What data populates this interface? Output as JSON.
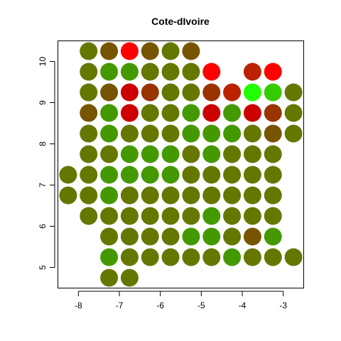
{
  "chart_data": {
    "type": "scatter",
    "title": "Cote-dIvoire",
    "xlabel": "",
    "ylabel": "",
    "xlim": [
      -8.5,
      -2.5
    ],
    "ylim": [
      4.5,
      10.5
    ],
    "x_ticks": [
      -8,
      -7,
      -6,
      -5,
      -4,
      -3
    ],
    "y_ticks": [
      5,
      6,
      7,
      8,
      9,
      10
    ],
    "x_tick_labels": [
      "-8",
      "-7",
      "-6",
      "-5",
      "-4",
      "-3"
    ],
    "y_tick_labels": [
      "5",
      "6",
      "7",
      "8",
      "9",
      "10"
    ],
    "grid": false,
    "legend": "none",
    "marker": "filled-circle",
    "palette": {
      "olive": "#667700",
      "green": "#449900",
      "brown": "#775500",
      "rust": "#993300",
      "darkred": "#BB2200",
      "crimson": "#CC0000",
      "red": "#FF0000",
      "lime": "#22FF00",
      "brightgreen": "#33CC00"
    },
    "points": [
      {
        "x": -7.75,
        "y": 10.25,
        "color": "olive"
      },
      {
        "x": -7.25,
        "y": 10.25,
        "color": "brown"
      },
      {
        "x": -6.75,
        "y": 10.25,
        "color": "red"
      },
      {
        "x": -6.25,
        "y": 10.25,
        "color": "brown"
      },
      {
        "x": -5.75,
        "y": 10.25,
        "color": "olive"
      },
      {
        "x": -5.25,
        "y": 10.25,
        "color": "brown"
      },
      {
        "x": -7.75,
        "y": 9.75,
        "color": "olive"
      },
      {
        "x": -7.25,
        "y": 9.75,
        "color": "green"
      },
      {
        "x": -6.75,
        "y": 9.75,
        "color": "green"
      },
      {
        "x": -6.25,
        "y": 9.75,
        "color": "olive"
      },
      {
        "x": -5.75,
        "y": 9.75,
        "color": "olive"
      },
      {
        "x": -5.25,
        "y": 9.75,
        "color": "olive"
      },
      {
        "x": -4.75,
        "y": 9.75,
        "color": "red"
      },
      {
        "x": -3.75,
        "y": 9.75,
        "color": "darkred"
      },
      {
        "x": -3.25,
        "y": 9.75,
        "color": "red"
      },
      {
        "x": -7.75,
        "y": 9.25,
        "color": "olive"
      },
      {
        "x": -7.25,
        "y": 9.25,
        "color": "brown"
      },
      {
        "x": -6.75,
        "y": 9.25,
        "color": "crimson"
      },
      {
        "x": -6.25,
        "y": 9.25,
        "color": "rust"
      },
      {
        "x": -5.75,
        "y": 9.25,
        "color": "olive"
      },
      {
        "x": -5.25,
        "y": 9.25,
        "color": "olive"
      },
      {
        "x": -4.75,
        "y": 9.25,
        "color": "rust"
      },
      {
        "x": -4.25,
        "y": 9.25,
        "color": "darkred"
      },
      {
        "x": -3.75,
        "y": 9.25,
        "color": "lime"
      },
      {
        "x": -3.25,
        "y": 9.25,
        "color": "brightgreen"
      },
      {
        "x": -2.75,
        "y": 9.25,
        "color": "olive"
      },
      {
        "x": -7.75,
        "y": 8.75,
        "color": "brown"
      },
      {
        "x": -7.25,
        "y": 8.75,
        "color": "green"
      },
      {
        "x": -6.75,
        "y": 8.75,
        "color": "crimson"
      },
      {
        "x": -6.25,
        "y": 8.75,
        "color": "olive"
      },
      {
        "x": -5.75,
        "y": 8.75,
        "color": "olive"
      },
      {
        "x": -5.25,
        "y": 8.75,
        "color": "green"
      },
      {
        "x": -4.75,
        "y": 8.75,
        "color": "crimson"
      },
      {
        "x": -4.25,
        "y": 8.75,
        "color": "green"
      },
      {
        "x": -3.75,
        "y": 8.75,
        "color": "crimson"
      },
      {
        "x": -3.25,
        "y": 8.75,
        "color": "rust"
      },
      {
        "x": -2.75,
        "y": 8.75,
        "color": "olive"
      },
      {
        "x": -7.75,
        "y": 8.25,
        "color": "olive"
      },
      {
        "x": -7.25,
        "y": 8.25,
        "color": "green"
      },
      {
        "x": -6.75,
        "y": 8.25,
        "color": "olive"
      },
      {
        "x": -6.25,
        "y": 8.25,
        "color": "olive"
      },
      {
        "x": -5.75,
        "y": 8.25,
        "color": "olive"
      },
      {
        "x": -5.25,
        "y": 8.25,
        "color": "green"
      },
      {
        "x": -4.75,
        "y": 8.25,
        "color": "green"
      },
      {
        "x": -4.25,
        "y": 8.25,
        "color": "green"
      },
      {
        "x": -3.75,
        "y": 8.25,
        "color": "olive"
      },
      {
        "x": -3.25,
        "y": 8.25,
        "color": "brown"
      },
      {
        "x": -2.75,
        "y": 8.25,
        "color": "olive"
      },
      {
        "x": -7.75,
        "y": 7.75,
        "color": "olive"
      },
      {
        "x": -7.25,
        "y": 7.75,
        "color": "olive"
      },
      {
        "x": -6.75,
        "y": 7.75,
        "color": "green"
      },
      {
        "x": -6.25,
        "y": 7.75,
        "color": "green"
      },
      {
        "x": -5.75,
        "y": 7.75,
        "color": "green"
      },
      {
        "x": -5.25,
        "y": 7.75,
        "color": "olive"
      },
      {
        "x": -4.75,
        "y": 7.75,
        "color": "green"
      },
      {
        "x": -4.25,
        "y": 7.75,
        "color": "olive"
      },
      {
        "x": -3.75,
        "y": 7.75,
        "color": "olive"
      },
      {
        "x": -3.25,
        "y": 7.75,
        "color": "olive"
      },
      {
        "x": -8.25,
        "y": 7.25,
        "color": "olive"
      },
      {
        "x": -7.75,
        "y": 7.25,
        "color": "olive"
      },
      {
        "x": -7.25,
        "y": 7.25,
        "color": "green"
      },
      {
        "x": -6.75,
        "y": 7.25,
        "color": "green"
      },
      {
        "x": -6.25,
        "y": 7.25,
        "color": "green"
      },
      {
        "x": -5.75,
        "y": 7.25,
        "color": "green"
      },
      {
        "x": -5.25,
        "y": 7.25,
        "color": "olive"
      },
      {
        "x": -4.75,
        "y": 7.25,
        "color": "olive"
      },
      {
        "x": -4.25,
        "y": 7.25,
        "color": "olive"
      },
      {
        "x": -3.75,
        "y": 7.25,
        "color": "olive"
      },
      {
        "x": -3.25,
        "y": 7.25,
        "color": "olive"
      },
      {
        "x": -8.25,
        "y": 6.75,
        "color": "olive"
      },
      {
        "x": -7.75,
        "y": 6.75,
        "color": "olive"
      },
      {
        "x": -7.25,
        "y": 6.75,
        "color": "green"
      },
      {
        "x": -6.75,
        "y": 6.75,
        "color": "olive"
      },
      {
        "x": -6.25,
        "y": 6.75,
        "color": "olive"
      },
      {
        "x": -5.75,
        "y": 6.75,
        "color": "olive"
      },
      {
        "x": -5.25,
        "y": 6.75,
        "color": "olive"
      },
      {
        "x": -4.75,
        "y": 6.75,
        "color": "olive"
      },
      {
        "x": -4.25,
        "y": 6.75,
        "color": "olive"
      },
      {
        "x": -3.75,
        "y": 6.75,
        "color": "olive"
      },
      {
        "x": -3.25,
        "y": 6.75,
        "color": "olive"
      },
      {
        "x": -7.75,
        "y": 6.25,
        "color": "olive"
      },
      {
        "x": -7.25,
        "y": 6.25,
        "color": "olive"
      },
      {
        "x": -6.75,
        "y": 6.25,
        "color": "olive"
      },
      {
        "x": -6.25,
        "y": 6.25,
        "color": "olive"
      },
      {
        "x": -5.75,
        "y": 6.25,
        "color": "olive"
      },
      {
        "x": -5.25,
        "y": 6.25,
        "color": "olive"
      },
      {
        "x": -4.75,
        "y": 6.25,
        "color": "green"
      },
      {
        "x": -4.25,
        "y": 6.25,
        "color": "olive"
      },
      {
        "x": -3.75,
        "y": 6.25,
        "color": "olive"
      },
      {
        "x": -3.25,
        "y": 6.25,
        "color": "olive"
      },
      {
        "x": -7.25,
        "y": 5.75,
        "color": "olive"
      },
      {
        "x": -6.75,
        "y": 5.75,
        "color": "olive"
      },
      {
        "x": -6.25,
        "y": 5.75,
        "color": "olive"
      },
      {
        "x": -5.75,
        "y": 5.75,
        "color": "olive"
      },
      {
        "x": -5.25,
        "y": 5.75,
        "color": "green"
      },
      {
        "x": -4.75,
        "y": 5.75,
        "color": "green"
      },
      {
        "x": -4.25,
        "y": 5.75,
        "color": "olive"
      },
      {
        "x": -3.75,
        "y": 5.75,
        "color": "brown"
      },
      {
        "x": -3.25,
        "y": 5.75,
        "color": "green"
      },
      {
        "x": -7.25,
        "y": 5.25,
        "color": "green"
      },
      {
        "x": -6.75,
        "y": 5.25,
        "color": "olive"
      },
      {
        "x": -6.25,
        "y": 5.25,
        "color": "olive"
      },
      {
        "x": -5.75,
        "y": 5.25,
        "color": "olive"
      },
      {
        "x": -5.25,
        "y": 5.25,
        "color": "olive"
      },
      {
        "x": -4.75,
        "y": 5.25,
        "color": "olive"
      },
      {
        "x": -4.25,
        "y": 5.25,
        "color": "green"
      },
      {
        "x": -3.75,
        "y": 5.25,
        "color": "olive"
      },
      {
        "x": -3.25,
        "y": 5.25,
        "color": "olive"
      },
      {
        "x": -2.75,
        "y": 5.25,
        "color": "olive"
      },
      {
        "x": -7.25,
        "y": 4.75,
        "color": "olive"
      },
      {
        "x": -6.75,
        "y": 4.75,
        "color": "olive"
      }
    ]
  }
}
